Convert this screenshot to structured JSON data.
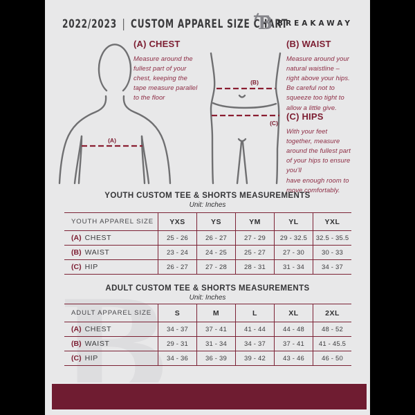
{
  "header": {
    "season": "2022/2023",
    "separator": "|",
    "title": "CUSTOM APPAREL SIZE CHART",
    "brand": "BREAKAWAY"
  },
  "measurement_guide": {
    "chest": {
      "heading": "(A) CHEST",
      "description": "Measure around the\nfullest part of your\nchest, keeping the\ntape measure parallel\nto the floor"
    },
    "waist": {
      "heading": "(B) WAIST",
      "description": "Measure around your\nnatural waistline –\nright above your hips.\nBe careful not to\nsqueeze too tight to\nallow a little give."
    },
    "hips": {
      "heading": "(C) HIPS",
      "description": "With your feet\ntogether, measure\naround the fullest part\nof your hips to ensure\nyou’ll\nhave enough room to\nmove comfortably."
    },
    "diagram_labels": {
      "chest": "(A)",
      "waist": "(B)",
      "hips": "(C)"
    }
  },
  "youth_table": {
    "title": "YOUTH CUSTOM TEE & SHORTS MEASUREMENTS",
    "unit": "Unit: Inches",
    "size_column_header": "YOUTH APPAREL SIZE",
    "sizes": [
      "YXS",
      "YS",
      "YM",
      "YL",
      "YXL"
    ],
    "rows": [
      {
        "key": "(A)",
        "label": "CHEST",
        "values": [
          "25 - 26",
          "26 - 27",
          "27 - 29",
          "29 - 32.5",
          "32.5 - 35.5"
        ]
      },
      {
        "key": "(B)",
        "label": "WAIST",
        "values": [
          "23 - 24",
          "24 - 25",
          "25 - 27",
          "27 - 30",
          "30 - 33"
        ]
      },
      {
        "key": "(C)",
        "label": "HIP",
        "values": [
          "26 - 27",
          "27 - 28",
          "28 - 31",
          "31 - 34",
          "34 - 37"
        ]
      }
    ]
  },
  "adult_table": {
    "title": "ADULT CUSTOM TEE & SHORTS MEASUREMENTS",
    "unit": "Unit: Inches",
    "size_column_header": "ADULT APPAREL SIZE",
    "sizes": [
      "S",
      "M",
      "L",
      "XL",
      "2XL"
    ],
    "rows": [
      {
        "key": "(A)",
        "label": "CHEST",
        "values": [
          "34 - 37",
          "37 - 41",
          "41 - 44",
          "44 - 48",
          "48 - 52"
        ]
      },
      {
        "key": "(B)",
        "label": "WAIST",
        "values": [
          "29 - 31",
          "31 - 34",
          "34 - 37",
          "37 - 41",
          "41 - 45.5"
        ]
      },
      {
        "key": "(C)",
        "label": "HIP",
        "values": [
          "34 - 36",
          "36 - 39",
          "39 - 42",
          "43 - 46",
          "46 - 50"
        ]
      }
    ]
  },
  "watermark": "B",
  "colors": {
    "maroon_accent": "#7b2134",
    "maroon_footer": "#6f1c31",
    "page_background": "#e8e8e9",
    "figure_gray": "#6f6f71"
  }
}
